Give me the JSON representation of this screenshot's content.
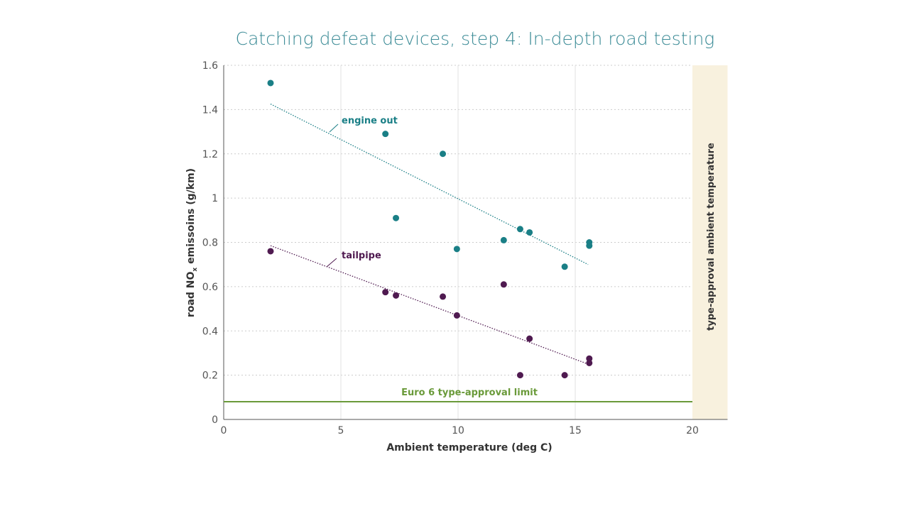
{
  "chart_data": {
    "type": "scatter",
    "title": "Catching defeat devices, step 4: In-depth road testing",
    "xlabel": "Ambient temperature (deg C)",
    "ylabel_parts": [
      "road NO",
      "x",
      " emissoins (g/km)"
    ],
    "xlim": [
      0,
      21.5
    ],
    "ylim": [
      0,
      1.6
    ],
    "xticks": [
      0,
      5,
      10,
      15,
      20
    ],
    "yticks": [
      0,
      0.2,
      0.4,
      0.6,
      0.8,
      1,
      1.2,
      1.4,
      1.6
    ],
    "xtick_labels": [
      "0",
      "5",
      "10",
      "15",
      "20"
    ],
    "ytick_labels": [
      "0",
      "0.2",
      "0.4",
      "0.6",
      "0.8",
      "1",
      "1.2",
      "1.4",
      "1.6"
    ],
    "grid": {
      "vertical": "solid",
      "horizontal": "dotted"
    },
    "series": [
      {
        "name": "engine out",
        "color": "#1a7f86",
        "points": [
          [
            2,
            1.52
          ],
          [
            6.9,
            1.29
          ],
          [
            9.35,
            1.2
          ],
          [
            7.35,
            0.91
          ],
          [
            9.95,
            0.77
          ],
          [
            11.95,
            0.81
          ],
          [
            12.65,
            0.86
          ],
          [
            13.05,
            0.845
          ],
          [
            14.55,
            0.69
          ],
          [
            15.6,
            0.8
          ],
          [
            15.6,
            0.785
          ]
        ],
        "trendline": [
          [
            2,
            1.425
          ],
          [
            15.55,
            0.7
          ]
        ]
      },
      {
        "name": "tailpipe",
        "color": "#4f1a50",
        "points": [
          [
            2,
            0.76
          ],
          [
            6.9,
            0.575
          ],
          [
            7.35,
            0.56
          ],
          [
            9.35,
            0.555
          ],
          [
            9.95,
            0.47
          ],
          [
            11.95,
            0.61
          ],
          [
            13.05,
            0.365
          ],
          [
            12.65,
            0.2
          ],
          [
            14.55,
            0.2
          ],
          [
            15.6,
            0.275
          ],
          [
            15.6,
            0.255
          ]
        ],
        "trendline": [
          [
            2,
            0.785
          ],
          [
            15.55,
            0.25
          ]
        ]
      }
    ],
    "reference_line": {
      "label": "Euro 6 type-approval limit",
      "y": 0.08,
      "color": "#6a9a3a"
    },
    "shaded_region": {
      "label": "type-approval ambient temperature",
      "x": [
        20,
        21.5
      ],
      "color": "#f8f1de"
    }
  }
}
